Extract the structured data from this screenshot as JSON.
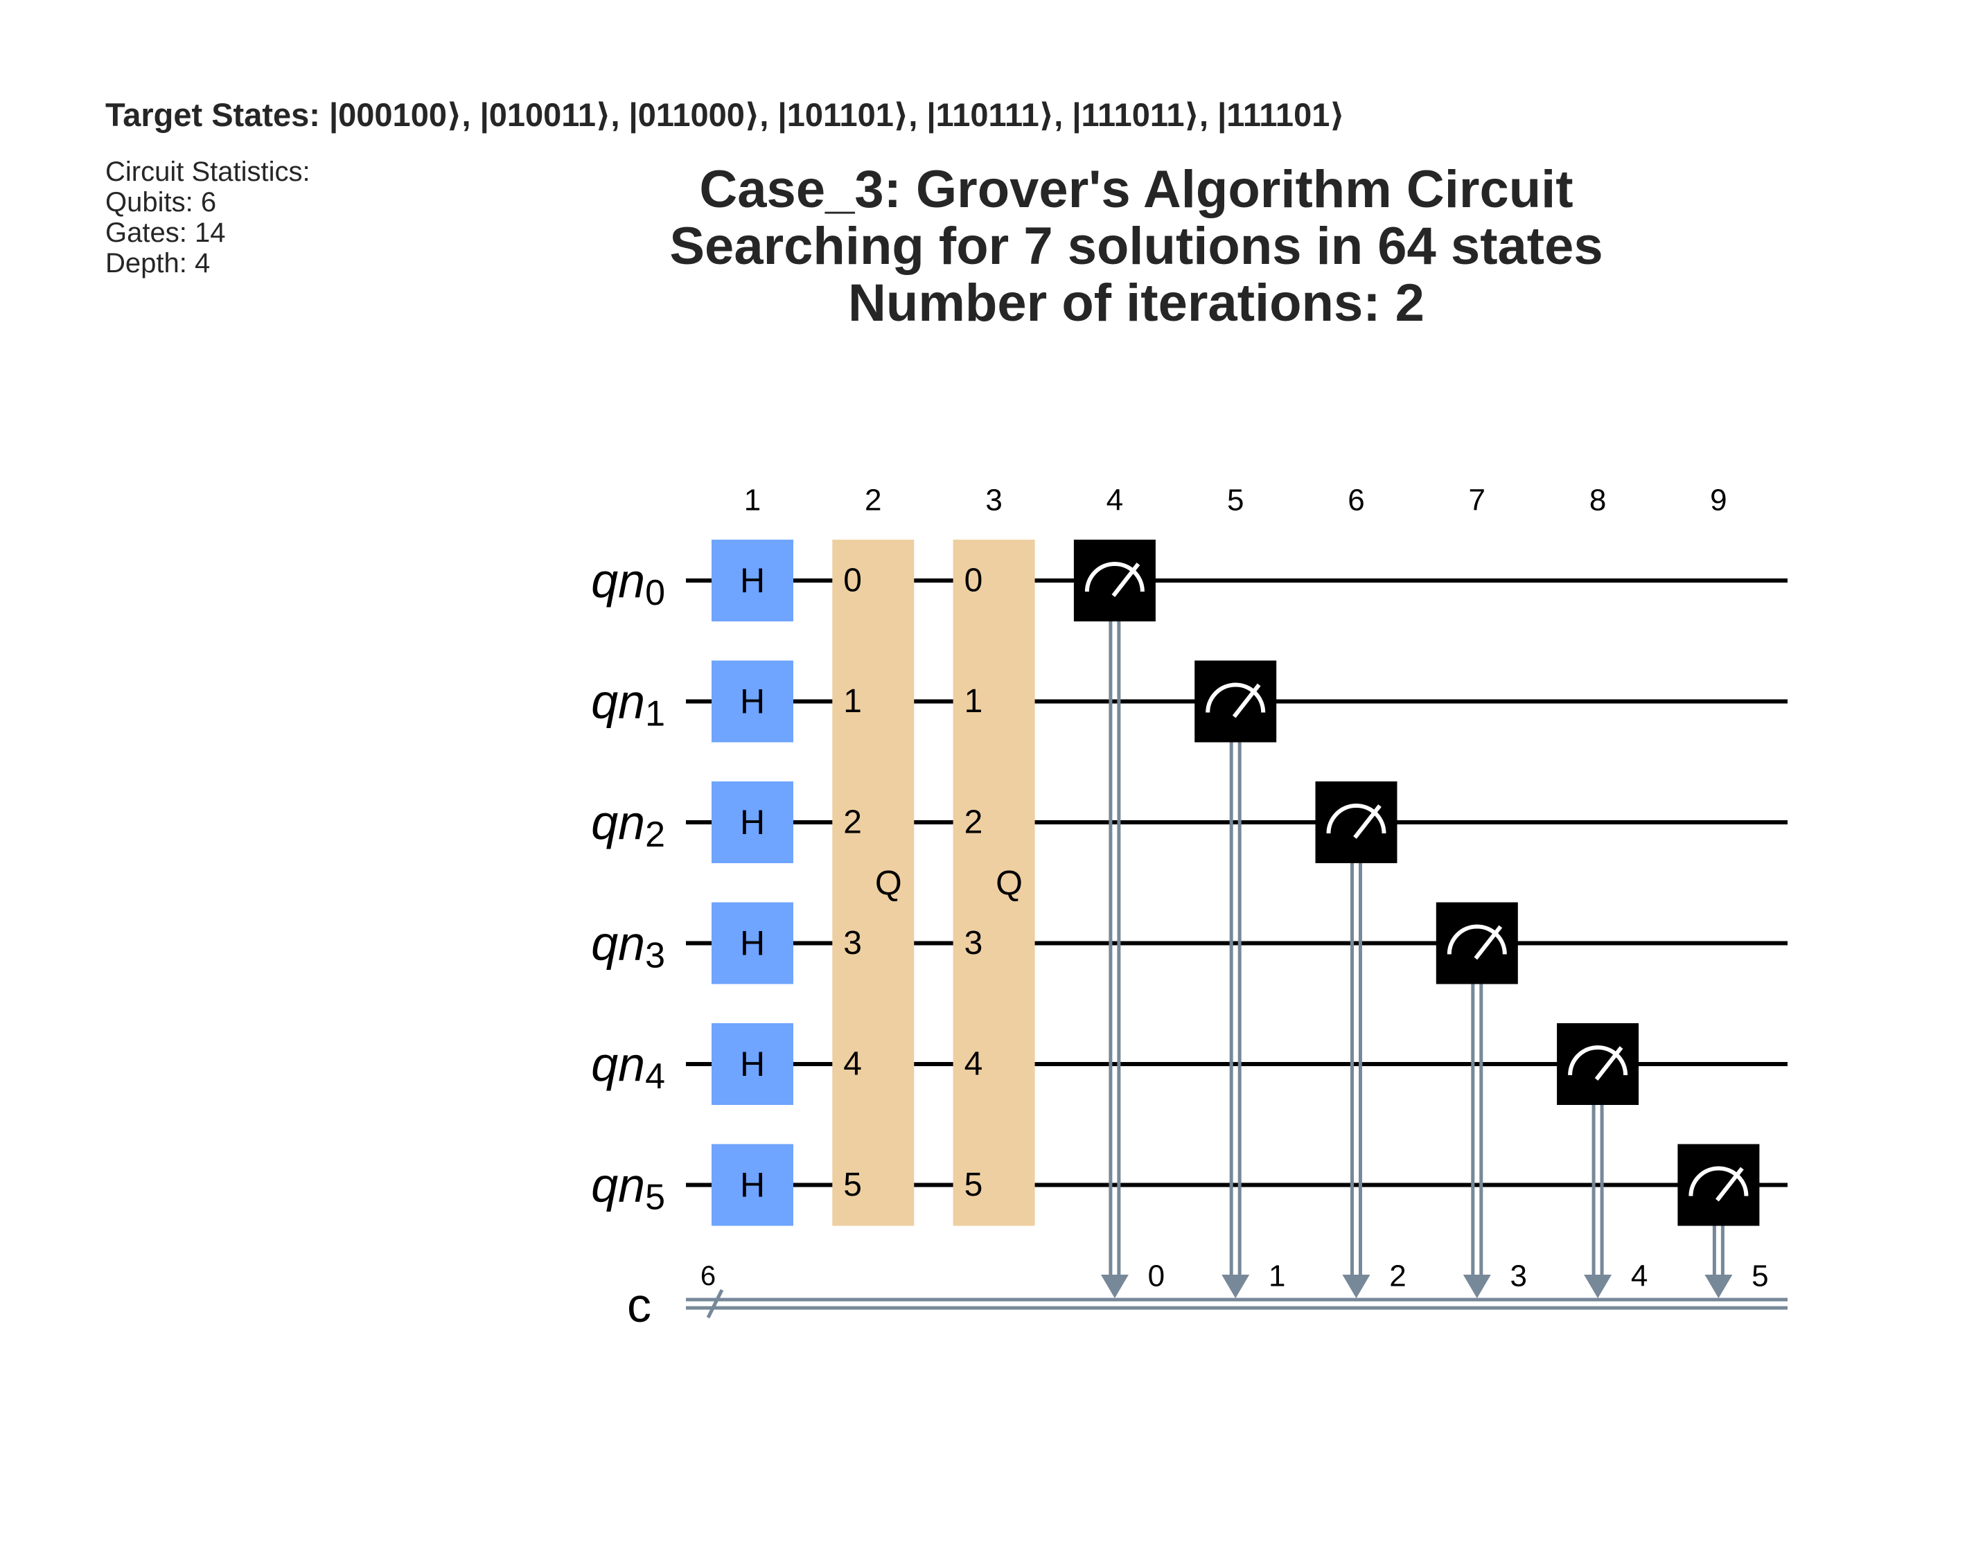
{
  "header": {
    "target_states": "Target States: |000100⟩, |010011⟩, |011000⟩, |101101⟩, |110111⟩, |111011⟩, |111101⟩"
  },
  "stats": {
    "heading": "Circuit Statistics:",
    "qubits": "Qubits: 6",
    "gates": "Gates: 14",
    "depth": "Depth: 4"
  },
  "title": {
    "line1": "Case_3: Grover's Algorithm Circuit",
    "line2": "Searching for 7 solutions in 64 states",
    "line3": "Number of iterations: 2"
  },
  "circuit": {
    "qubit_prefix": "qn",
    "qubits": [
      "0",
      "1",
      "2",
      "3",
      "4",
      "5"
    ],
    "classical_register": "c",
    "classical_size": "6",
    "columns": [
      "1",
      "2",
      "3",
      "4",
      "5",
      "6",
      "7",
      "8",
      "9"
    ],
    "h_gate_label": "H",
    "oracle_gates": [
      {
        "column": 2,
        "label": "Q",
        "pins": [
          "0",
          "1",
          "2",
          "3",
          "4",
          "5"
        ]
      },
      {
        "column": 3,
        "label": "Q",
        "pins": [
          "0",
          "1",
          "2",
          "3",
          "4",
          "5"
        ]
      }
    ],
    "measurements": [
      {
        "qubit": 0,
        "column": 4,
        "clbit": "0"
      },
      {
        "qubit": 1,
        "column": 5,
        "clbit": "1"
      },
      {
        "qubit": 2,
        "column": 6,
        "clbit": "2"
      },
      {
        "qubit": 3,
        "column": 7,
        "clbit": "3"
      },
      {
        "qubit": 4,
        "column": 8,
        "clbit": "4"
      },
      {
        "qubit": 5,
        "column": 9,
        "clbit": "5"
      }
    ],
    "colors": {
      "h_gate": "#6fa4ff",
      "oracle": "#eecfa1",
      "measure": "#000000",
      "classical_wire": "#778899",
      "wire": "#000000"
    }
  }
}
